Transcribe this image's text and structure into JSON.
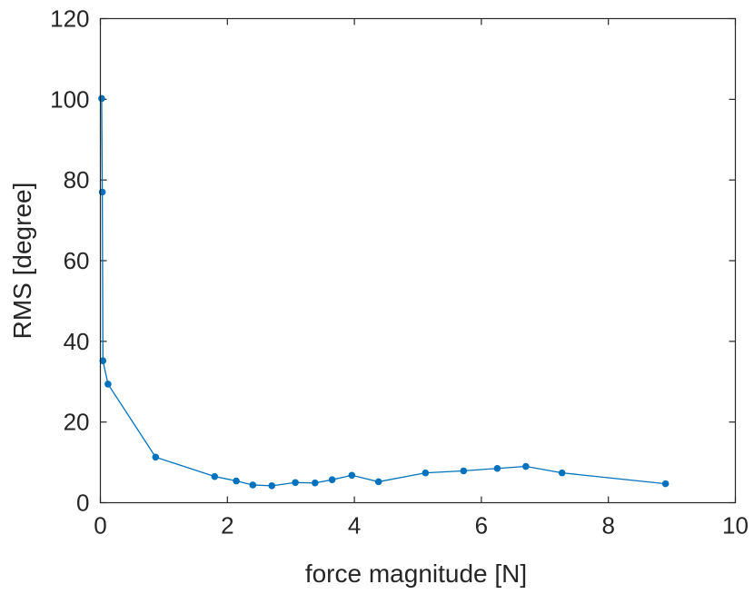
{
  "chart_data": {
    "type": "line",
    "title": "",
    "xlabel": "force magnitude [N]",
    "ylabel": "RMS [degree]",
    "xlim": [
      0,
      10
    ],
    "ylim": [
      0,
      120
    ],
    "xticks": [
      0,
      2,
      4,
      6,
      8,
      10
    ],
    "yticks": [
      0,
      20,
      40,
      60,
      80,
      100,
      120
    ],
    "grid": false,
    "color": "#0072BD",
    "series": [
      {
        "x": [
          0.02,
          0.03,
          0.04,
          0.12,
          0.87,
          1.8,
          2.14,
          2.4,
          2.7,
          3.07,
          3.38,
          3.65,
          3.96,
          4.38,
          5.12,
          5.72,
          6.25,
          6.7,
          7.27,
          8.9
        ],
        "y": [
          100.2,
          77.0,
          35.2,
          29.4,
          11.3,
          6.5,
          5.4,
          4.4,
          4.2,
          5.0,
          4.9,
          5.7,
          6.8,
          5.2,
          7.4,
          7.9,
          8.5,
          9.0,
          7.4,
          4.7
        ]
      }
    ]
  }
}
